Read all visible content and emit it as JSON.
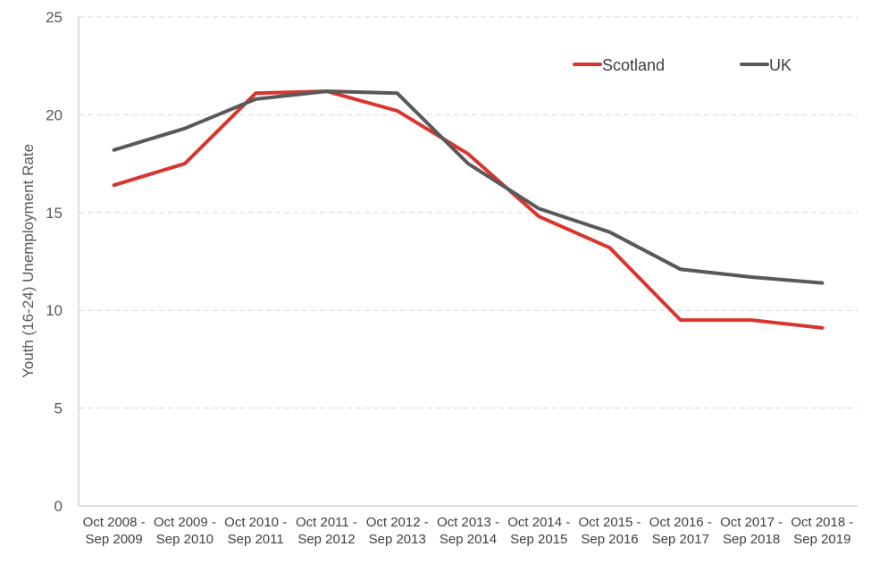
{
  "colors": {
    "scotland": "#d9352f",
    "uk": "#595959",
    "grid": "#d9d9d9",
    "axis": "#bfbfbf"
  },
  "chart_data": {
    "type": "line",
    "title": "",
    "xlabel": "",
    "ylabel": "Youth (16-24) Unemployment Rate",
    "ylim": [
      0,
      25
    ],
    "yticks": [
      0,
      5,
      10,
      15,
      20,
      25
    ],
    "grid": "horizontal dashed",
    "legend_position": "top-right",
    "categories": [
      [
        "Oct 2008 -",
        "Sep 2009"
      ],
      [
        "Oct 2009 -",
        "Sep 2010"
      ],
      [
        "Oct 2010 -",
        "Sep 2011"
      ],
      [
        "Oct 2011 -",
        "Sep 2012"
      ],
      [
        "Oct 2012 -",
        "Sep 2013"
      ],
      [
        "Oct 2013 -",
        "Sep 2014"
      ],
      [
        "Oct 2014 -",
        "Sep 2015"
      ],
      [
        "Oct 2015 -",
        "Sep 2016"
      ],
      [
        "Oct 2016 -",
        "Sep 2017"
      ],
      [
        "Oct 2017 -",
        "Sep 2018"
      ],
      [
        "Oct 2018 -",
        "Sep 2019"
      ]
    ],
    "series": [
      {
        "name": "Scotland",
        "color": "#d9352f",
        "values": [
          16.4,
          17.5,
          21.1,
          21.2,
          20.2,
          18.0,
          14.8,
          13.2,
          9.5,
          9.5,
          9.1
        ]
      },
      {
        "name": "UK",
        "color": "#595959",
        "values": [
          18.2,
          19.3,
          20.8,
          21.2,
          21.1,
          17.5,
          15.2,
          14.0,
          12.1,
          11.7,
          11.4
        ]
      }
    ]
  }
}
